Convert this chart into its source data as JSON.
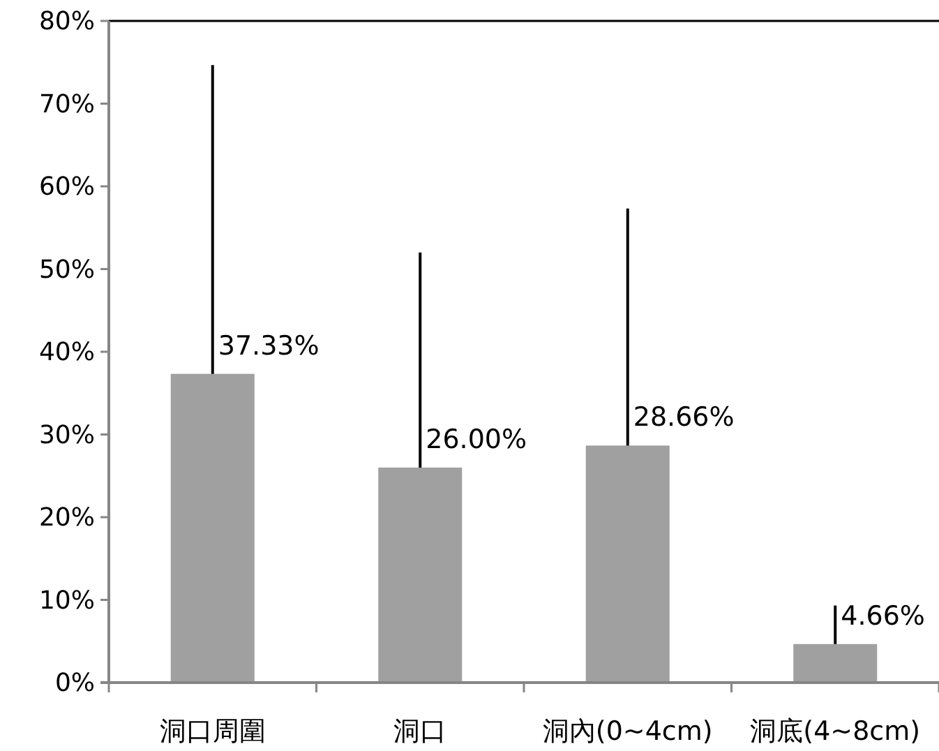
{
  "chart_data": {
    "type": "bar",
    "categories": [
      "洞口周圍",
      "洞口",
      "洞內(0~4cm)",
      "洞底(4~8cm)"
    ],
    "values": [
      37.33,
      26.0,
      28.66,
      4.66
    ],
    "value_labels": [
      "37.33%",
      "26.00%",
      "28.66%",
      "4.66%"
    ],
    "errors": [
      [
        37.33,
        74.66
      ],
      [
        26.0,
        52.0
      ],
      [
        28.66,
        57.32
      ],
      [
        4.66,
        9.32
      ]
    ],
    "color": "#a0a0a0",
    "ylim": [
      0,
      80
    ],
    "yticks": [
      {
        "value": 0,
        "label": "0%"
      },
      {
        "value": 10,
        "label": "10%"
      },
      {
        "value": 20,
        "label": "20%"
      },
      {
        "value": 30,
        "label": "30%"
      },
      {
        "value": 40,
        "label": "40%"
      },
      {
        "value": 50,
        "label": "50%"
      },
      {
        "value": 60,
        "label": "60%"
      },
      {
        "value": 70,
        "label": "70%"
      },
      {
        "value": 80,
        "label": "80%"
      }
    ],
    "grid": false
  }
}
